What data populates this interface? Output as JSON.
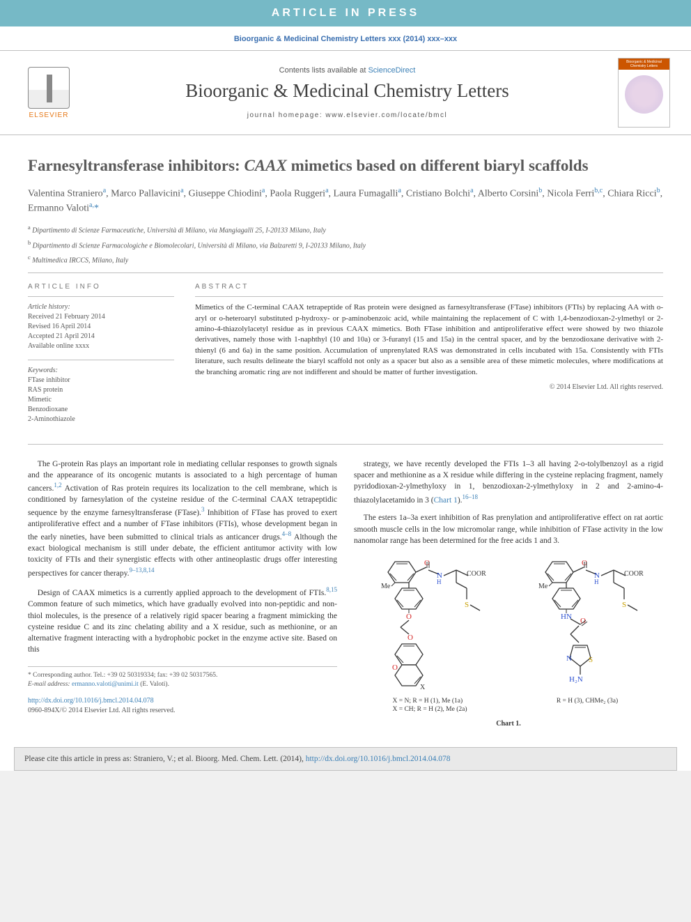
{
  "banner": "ARTICLE IN PRESS",
  "citation_top": "Bioorganic & Medicinal Chemistry Letters xxx (2014) xxx–xxx",
  "masthead": {
    "elsevier": "ELSEVIER",
    "contents_prefix": "Contents lists available at ",
    "contents_link": "ScienceDirect",
    "journal_title": "Bioorganic & Medicinal Chemistry Letters",
    "homepage_label": "journal homepage: www.elsevier.com/locate/bmcl",
    "cover_head": "Bioorganic & Medicinal Chemistry Letters"
  },
  "title_a": "Farnesyltransferase inhibitors: ",
  "title_ital": "CAAX",
  "title_b": " mimetics based on different biaryl scaffolds",
  "authors": [
    {
      "name": "Valentina Straniero",
      "sup": "a"
    },
    {
      "name": "Marco Pallavicini",
      "sup": "a"
    },
    {
      "name": "Giuseppe Chiodini",
      "sup": "a"
    },
    {
      "name": "Paola Ruggeri",
      "sup": "a"
    },
    {
      "name": "Laura Fumagalli",
      "sup": "a"
    },
    {
      "name": "Cristiano Bolchi",
      "sup": "a"
    },
    {
      "name": "Alberto Corsini",
      "sup": "b"
    },
    {
      "name": "Nicola Ferri",
      "sup": "b,c"
    },
    {
      "name": "Chiara Ricci",
      "sup": "b"
    },
    {
      "name": "Ermanno Valoti",
      "sup": "a,*"
    }
  ],
  "affiliations": [
    {
      "sup": "a",
      "text": "Dipartimento di Scienze Farmaceutiche, Università di Milano, via Mangiagalli 25, I-20133 Milano, Italy"
    },
    {
      "sup": "b",
      "text": "Dipartimento di Scienze Farmacologiche e Biomolecolari, Università di Milano, via Balzaretti 9, I-20133 Milano, Italy"
    },
    {
      "sup": "c",
      "text": "Multimedica IRCCS, Milano, Italy"
    }
  ],
  "info_head": "ARTICLE INFO",
  "history_label": "Article history:",
  "history": [
    "Received 21 February 2014",
    "Revised 16 April 2014",
    "Accepted 21 April 2014",
    "Available online xxxx"
  ],
  "keywords_label": "Keywords:",
  "keywords": [
    "FTase inhibitor",
    "RAS protein",
    "Mimetic",
    "Benzodioxane",
    "2-Aminothiazole"
  ],
  "abstract_head": "ABSTRACT",
  "abstract_text": "Mimetics of the C-terminal CAAX tetrapeptide of Ras protein were designed as farnesyltransferase (FTase) inhibitors (FTIs) by replacing AA with o-aryl or o-heteroaryl substituted p-hydroxy- or p-aminobenzoic acid, while maintaining the replacement of C with 1,4-benzodioxan-2-ylmethyl or 2-amino-4-thiazolylacetyl residue as in previous CAAX mimetics. Both FTase inhibition and antiproliferative effect were showed by two thiazole derivatives, namely those with 1-naphthyl (10 and 10a) or 3-furanyl (15 and 15a) in the central spacer, and by the benzodioxane derivative with 2-thienyl (6 and 6a) in the same position. Accumulation of unprenylated RAS was demonstrated in cells incubated with 15a. Consistently with FTIs literature, such results delineate the biaryl scaffold not only as a spacer but also as a sensible area of these mimetic molecules, where modifications at the branching aromatic ring are not indifferent and should be matter of further investigation.",
  "copyright": "© 2014 Elsevier Ltd. All rights reserved.",
  "body": {
    "p1_a": "The G-protein Ras plays an important role in mediating cellular responses to growth signals and the appearance of its oncogenic mutants is associated to a high percentage of human cancers.",
    "p1_sup1": "1,2",
    "p1_b": " Activation of Ras protein requires its localization to the cell membrane, which is conditioned by farnesylation of the cysteine residue of the C-terminal CAAX tetrapeptidic sequence by the enzyme farnesyltransferase (FTase).",
    "p1_sup2": "3",
    "p1_c": " Inhibition of FTase has proved to exert antiproliferative effect and a number of FTase inhibitors (FTIs), whose development began in the early nineties, have been submitted to clinical trials as anticancer drugs.",
    "p1_sup3": "4–8",
    "p1_d": " Although the exact biological mechanism is still under debate, the efficient antitumor activity with low toxicity of FTIs and their synergistic effects with other antineoplastic drugs offer interesting perspectives for cancer therapy.",
    "p1_sup4": "9–13,8,14",
    "p2_a": "Design of CAAX mimetics is a currently applied approach to the development of FTIs.",
    "p2_sup1": "8,15",
    "p2_b": " Common feature of such mimetics, which have gradually evolved into non-peptidic and non-thiol molecules, is the presence of a relatively rigid spacer bearing a fragment mimicking the cysteine residue C and its zinc chelating ability and a X residue, such as methionine, or an alternative fragment interacting with a hydrophobic pocket in the enzyme active site. Based on this",
    "p3_a": "strategy, we have recently developed the FTIs 1–3 all having 2-o-tolylbenzoyl as a rigid spacer and methionine as a X residue while differing in the cysteine replacing fragment, namely pyridodioxan-2-ylmethyloxy in 1, benzodioxan-2-ylmethyloxy in 2 and 2-amino-4-thiazolylacetamido in 3 (",
    "p3_link": "Chart 1",
    "p3_b": ").",
    "p3_sup1": "16–18",
    "p4": "The esters 1a–3a exert inhibition of Ras prenylation and antiproliferative effect on rat aortic smooth muscle cells in the low micromolar range, while inhibition of FTase activity in the low nanomolar range has been determined for the free acids 1 and 3."
  },
  "chart": {
    "caption1_line1": "X = N; R = H (1), Me (1a)",
    "caption1_line2": "X = CH; R = H (2), Me (2a)",
    "caption2": "R = H (3), CHMe₂ (3a)",
    "label": "Chart 1.",
    "colors": {
      "carbon": "#333333",
      "nitrogen": "#2a4fd0",
      "oxygen": "#d32020",
      "sulfur": "#c9a000"
    }
  },
  "footnote": {
    "corr_label": "* Corresponding author. Tel.: +39 02 50319334; fax: +39 02 50317565.",
    "email_label": "E-mail address: ",
    "email": "ermanno.valoti@unimi.it",
    "email_who": " (E. Valoti)."
  },
  "doi": {
    "url": "http://dx.doi.org/10.1016/j.bmcl.2014.04.078",
    "line2": "0960-894X/© 2014 Elsevier Ltd. All rights reserved."
  },
  "citebox": {
    "prefix": "Please cite this article in press as: Straniero, V.; et al. ",
    "ital": "Bioorg. Med. Chem. Lett.",
    "mid": " (2014), ",
    "url": "http://dx.doi.org/10.1016/j.bmcl.2014.04.078"
  }
}
